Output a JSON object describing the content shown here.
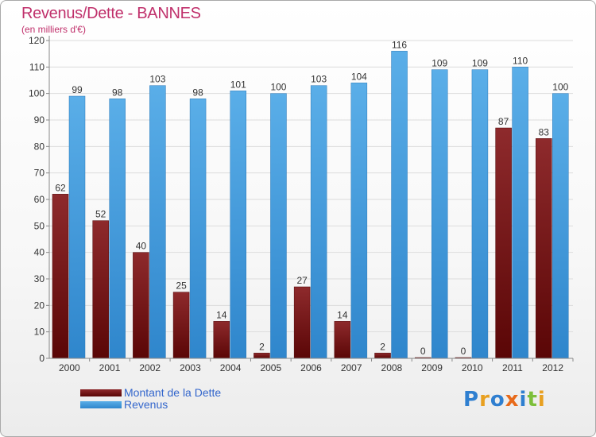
{
  "title": "Revenus/Dette - BANNES",
  "subtitle": "(en milliers d'€)",
  "logo": "Proxiti",
  "colors": {
    "title": "#c0306b",
    "dette": "#7a1418",
    "revenus": "#3a97dc",
    "legend_text": "#3366cc"
  },
  "legend": [
    {
      "label": "Montant de la Dette",
      "color": "#7a1418"
    },
    {
      "label": "Revenus",
      "color": "#3a97dc"
    }
  ],
  "chart_data": {
    "type": "bar",
    "categories": [
      "2000",
      "2001",
      "2002",
      "2003",
      "2004",
      "2005",
      "2006",
      "2007",
      "2008",
      "2009",
      "2010",
      "2011",
      "2012"
    ],
    "series": [
      {
        "name": "Montant de la Dette",
        "color": "#7a1418",
        "values": [
          62,
          52,
          40,
          25,
          14,
          2,
          27,
          14,
          2,
          0,
          0,
          87,
          83
        ]
      },
      {
        "name": "Revenus",
        "color": "#3a97dc",
        "values": [
          99,
          98,
          103,
          98,
          101,
          100,
          103,
          104,
          116,
          109,
          109,
          110,
          100
        ]
      }
    ],
    "ylim": [
      0,
      120
    ],
    "yticks": [
      0,
      10,
      20,
      30,
      40,
      50,
      60,
      70,
      80,
      90,
      100,
      110,
      120
    ],
    "grid": true,
    "legend_position": "bottom-left",
    "data_labels": true
  }
}
